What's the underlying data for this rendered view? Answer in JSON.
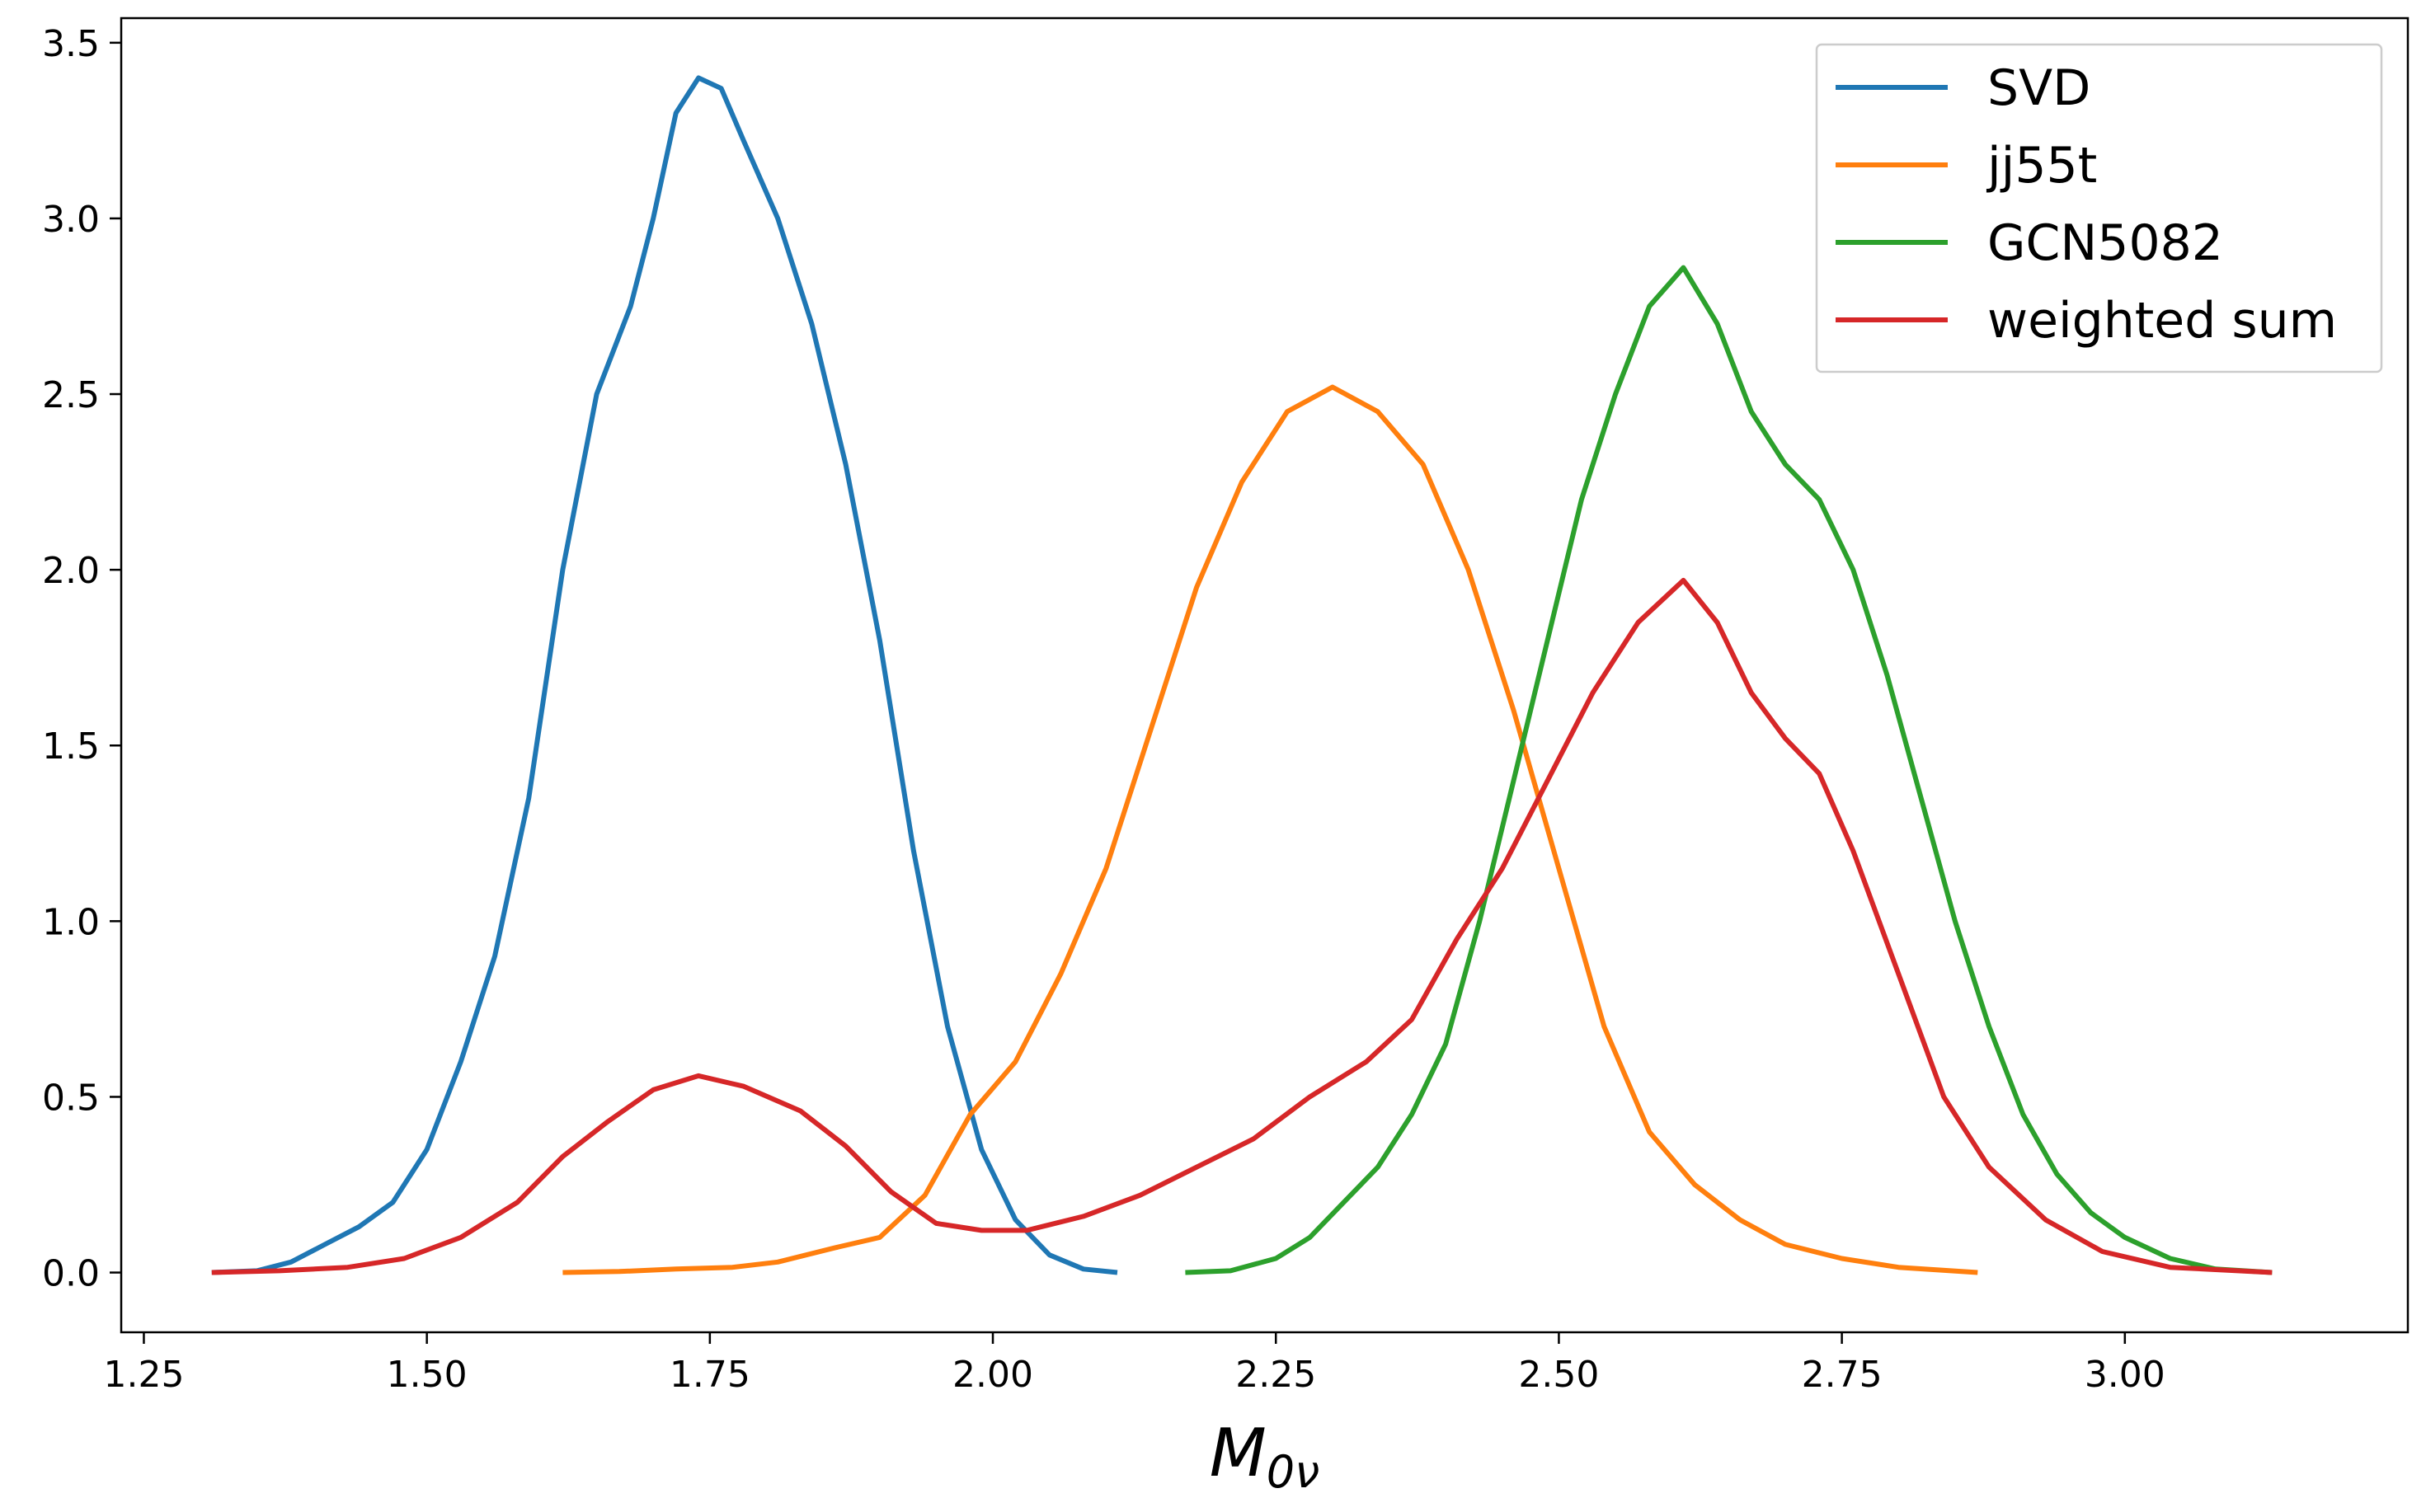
{
  "chart_data": {
    "type": "line",
    "title": "",
    "xlabel": {
      "main": "M",
      "sub": "0ν"
    },
    "ylabel": "",
    "xlim": [
      1.23,
      3.25
    ],
    "ylim": [
      -0.17,
      3.57
    ],
    "x_ticks": [
      1.25,
      1.5,
      1.75,
      2.0,
      2.25,
      2.5,
      2.75,
      3.0
    ],
    "x_tick_labels": [
      "1.25",
      "1.50",
      "1.75",
      "2.00",
      "2.25",
      "2.50",
      "2.75",
      "3.00"
    ],
    "y_ticks": [
      0.0,
      0.5,
      1.0,
      1.5,
      2.0,
      2.5,
      3.0,
      3.5
    ],
    "y_tick_labels": [
      "0.0",
      "0.5",
      "1.0",
      "1.5",
      "2.0",
      "2.5",
      "3.0",
      "3.5"
    ],
    "grid": false,
    "legend_position": "top-right",
    "series": [
      {
        "name": "SVD",
        "color": "#1f77b4",
        "points": [
          [
            1.31,
            0.0
          ],
          [
            1.35,
            0.005
          ],
          [
            1.38,
            0.03
          ],
          [
            1.41,
            0.08
          ],
          [
            1.44,
            0.13
          ],
          [
            1.47,
            0.2
          ],
          [
            1.5,
            0.35
          ],
          [
            1.53,
            0.6
          ],
          [
            1.56,
            0.9
          ],
          [
            1.59,
            1.35
          ],
          [
            1.62,
            2.0
          ],
          [
            1.65,
            2.5
          ],
          [
            1.68,
            2.75
          ],
          [
            1.7,
            3.0
          ],
          [
            1.72,
            3.3
          ],
          [
            1.74,
            3.4
          ],
          [
            1.76,
            3.37
          ],
          [
            1.78,
            3.22
          ],
          [
            1.81,
            3.0
          ],
          [
            1.84,
            2.7
          ],
          [
            1.87,
            2.3
          ],
          [
            1.9,
            1.8
          ],
          [
            1.93,
            1.2
          ],
          [
            1.96,
            0.7
          ],
          [
            1.99,
            0.35
          ],
          [
            2.02,
            0.15
          ],
          [
            2.05,
            0.05
          ],
          [
            2.08,
            0.01
          ],
          [
            2.11,
            0.0
          ]
        ]
      },
      {
        "name": "jj55t",
        "color": "#ff7f0e",
        "points": [
          [
            1.62,
            0.0
          ],
          [
            1.67,
            0.003
          ],
          [
            1.72,
            0.01
          ],
          [
            1.77,
            0.015
          ],
          [
            1.81,
            0.03
          ],
          [
            1.86,
            0.07
          ],
          [
            1.9,
            0.1
          ],
          [
            1.94,
            0.22
          ],
          [
            1.98,
            0.45
          ],
          [
            2.02,
            0.6
          ],
          [
            2.06,
            0.85
          ],
          [
            2.1,
            1.15
          ],
          [
            2.14,
            1.55
          ],
          [
            2.18,
            1.95
          ],
          [
            2.22,
            2.25
          ],
          [
            2.26,
            2.45
          ],
          [
            2.3,
            2.52
          ],
          [
            2.34,
            2.45
          ],
          [
            2.38,
            2.3
          ],
          [
            2.42,
            2.0
          ],
          [
            2.46,
            1.6
          ],
          [
            2.5,
            1.15
          ],
          [
            2.54,
            0.7
          ],
          [
            2.58,
            0.4
          ],
          [
            2.62,
            0.25
          ],
          [
            2.66,
            0.15
          ],
          [
            2.7,
            0.08
          ],
          [
            2.75,
            0.04
          ],
          [
            2.8,
            0.015
          ],
          [
            2.87,
            0.0
          ]
        ]
      },
      {
        "name": "GCN5082",
        "color": "#2ca02c",
        "points": [
          [
            2.17,
            0.0
          ],
          [
            2.21,
            0.005
          ],
          [
            2.25,
            0.04
          ],
          [
            2.28,
            0.1
          ],
          [
            2.31,
            0.2
          ],
          [
            2.34,
            0.3
          ],
          [
            2.37,
            0.45
          ],
          [
            2.4,
            0.65
          ],
          [
            2.43,
            1.0
          ],
          [
            2.46,
            1.4
          ],
          [
            2.49,
            1.8
          ],
          [
            2.52,
            2.2
          ],
          [
            2.55,
            2.5
          ],
          [
            2.58,
            2.75
          ],
          [
            2.61,
            2.86
          ],
          [
            2.64,
            2.7
          ],
          [
            2.67,
            2.45
          ],
          [
            2.7,
            2.3
          ],
          [
            2.73,
            2.2
          ],
          [
            2.76,
            2.0
          ],
          [
            2.79,
            1.7
          ],
          [
            2.82,
            1.35
          ],
          [
            2.85,
            1.0
          ],
          [
            2.88,
            0.7
          ],
          [
            2.91,
            0.45
          ],
          [
            2.94,
            0.28
          ],
          [
            2.97,
            0.17
          ],
          [
            3.0,
            0.1
          ],
          [
            3.04,
            0.04
          ],
          [
            3.08,
            0.01
          ],
          [
            3.13,
            0.0
          ]
        ]
      },
      {
        "name": "weighted sum",
        "color": "#d62728",
        "points": [
          [
            1.31,
            0.0
          ],
          [
            1.37,
            0.005
          ],
          [
            1.43,
            0.015
          ],
          [
            1.48,
            0.04
          ],
          [
            1.53,
            0.1
          ],
          [
            1.58,
            0.2
          ],
          [
            1.62,
            0.33
          ],
          [
            1.66,
            0.43
          ],
          [
            1.7,
            0.52
          ],
          [
            1.74,
            0.56
          ],
          [
            1.78,
            0.53
          ],
          [
            1.83,
            0.46
          ],
          [
            1.87,
            0.36
          ],
          [
            1.91,
            0.23
          ],
          [
            1.95,
            0.14
          ],
          [
            1.99,
            0.12
          ],
          [
            2.03,
            0.12
          ],
          [
            2.08,
            0.16
          ],
          [
            2.13,
            0.22
          ],
          [
            2.18,
            0.3
          ],
          [
            2.23,
            0.38
          ],
          [
            2.28,
            0.5
          ],
          [
            2.33,
            0.6
          ],
          [
            2.37,
            0.72
          ],
          [
            2.41,
            0.95
          ],
          [
            2.45,
            1.15
          ],
          [
            2.49,
            1.4
          ],
          [
            2.53,
            1.65
          ],
          [
            2.57,
            1.85
          ],
          [
            2.61,
            1.97
          ],
          [
            2.64,
            1.85
          ],
          [
            2.67,
            1.65
          ],
          [
            2.7,
            1.52
          ],
          [
            2.73,
            1.42
          ],
          [
            2.76,
            1.2
          ],
          [
            2.8,
            0.85
          ],
          [
            2.84,
            0.5
          ],
          [
            2.88,
            0.3
          ],
          [
            2.93,
            0.15
          ],
          [
            2.98,
            0.06
          ],
          [
            3.04,
            0.015
          ],
          [
            3.13,
            0.0
          ]
        ]
      }
    ]
  }
}
